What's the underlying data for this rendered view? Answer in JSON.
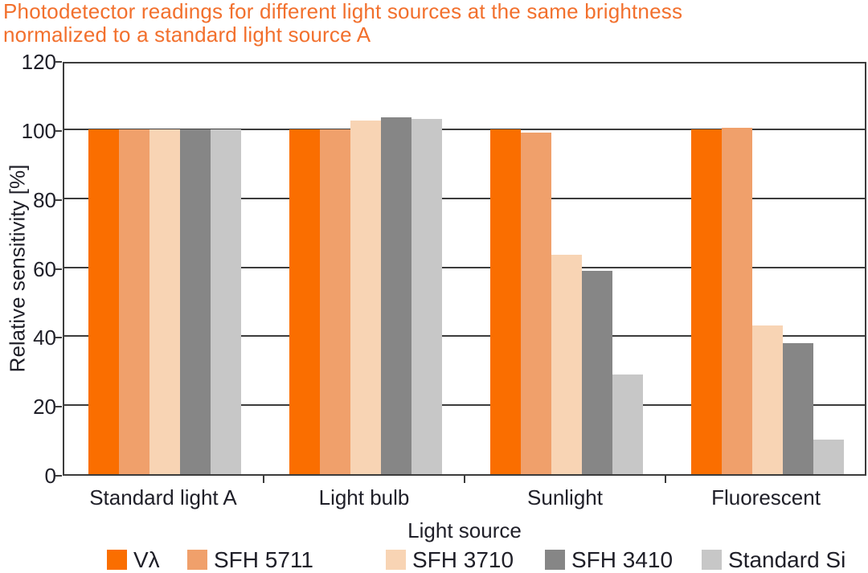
{
  "header": {
    "title_line1": "Photodetector readings for different light sources at the same brightness",
    "title_line2": "normalized to a standard light source A"
  },
  "chart_data": {
    "type": "bar",
    "title": "Photodetector readings for different light sources at the same brightness normalized to a standard light source A",
    "categories": [
      "Standard light A",
      "Light bulb",
      "Sunlight",
      "Fluorescent"
    ],
    "series": [
      {
        "name": "Vλ",
        "color": "#FA6E00",
        "values": [
          100,
          100,
          100,
          100
        ]
      },
      {
        "name": "SFH 5711",
        "color": "#F0A06B",
        "values": [
          100,
          100,
          99,
          100.5
        ]
      },
      {
        "name": "SFH 3710",
        "color": "#F8D4B4",
        "values": [
          100,
          102.5,
          63.5,
          43
        ]
      },
      {
        "name": "SFH 3410",
        "color": "#868686",
        "values": [
          100,
          103.5,
          59,
          38
        ]
      },
      {
        "name": "Standard Si",
        "color": "#C7C7C7",
        "values": [
          100,
          103,
          29,
          10
        ]
      }
    ],
    "xlabel": "Light source",
    "ylabel": "Relative sensitivity [%]",
    "ylim": [
      0,
      120
    ],
    "yticks": [
      0,
      20,
      40,
      60,
      80,
      100,
      120
    ],
    "grid": true,
    "legend_position": "bottom"
  },
  "colors": {
    "title": "#F2702D",
    "text": "#1F1F28",
    "axis": "#3C3C3C",
    "background": "#FFFFFF"
  }
}
